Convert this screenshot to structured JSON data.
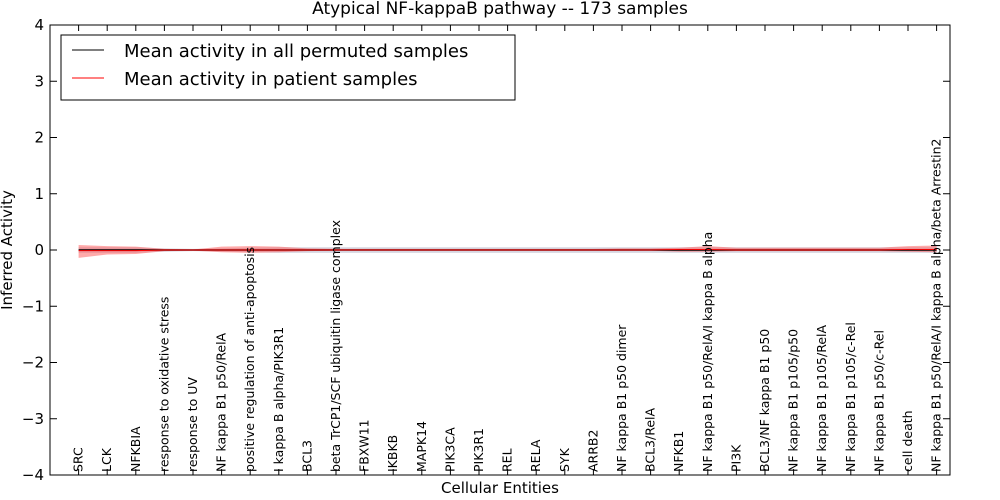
{
  "chart_data": {
    "type": "line",
    "title": "Atypical NF-kappaB pathway -- 173 samples",
    "xlabel": "Cellular Entities",
    "ylabel": "Inferred Activity",
    "ylim": [
      -4,
      4
    ],
    "yticks": [
      "−4",
      "−3",
      "−2",
      "−1",
      "0",
      "1",
      "2",
      "3",
      "4"
    ],
    "ytick_values": [
      -4,
      -3,
      -2,
      -1,
      0,
      1,
      2,
      3,
      4
    ],
    "legend_position": "top-left",
    "grid": false,
    "categories": [
      "SRC",
      "LCK",
      "NFKBIA",
      "response to oxidative stress",
      "response to UV",
      "NF kappa B1 p50/RelA",
      "positive regulation of anti-apoptosis",
      "I kappa B alpha/PIK3R1",
      "BCL3",
      "beta TrCP1/SCF ubiquitin ligase complex",
      "FBXW11",
      "IKBKB",
      "MAPK14",
      "PIK3CA",
      "PIK3R1",
      "REL",
      "RELA",
      "SYK",
      "ARRB2",
      "NF kappa B1 p50 dimer",
      "BCL3/RelA",
      "NFKB1",
      "NF kappa B1 p50/RelA/I kappa B alpha",
      "PI3K",
      "BCL3/NF kappa B1 p50",
      "NF kappa B1 p105/p50",
      "NF kappa B1 p105/RelA",
      "NF kappa B1 p105/c-Rel",
      "NF kappa B1 p50/c-Rel",
      "cell death",
      "NF kappa B1 p50/RelA/I kappa B alpha/beta Arrestin2"
    ],
    "series": [
      {
        "name": "Mean activity in all permuted samples",
        "color": "#000000",
        "band_color": "#8a8aa8",
        "values": [
          0,
          0,
          0,
          0,
          0,
          0,
          0,
          0,
          0,
          0,
          0,
          0,
          0,
          0,
          0,
          0,
          0,
          0,
          0,
          0,
          0,
          0,
          0,
          0,
          0,
          0,
          0,
          0,
          0,
          0,
          0
        ],
        "band_lower": [
          -0.05,
          -0.05,
          -0.05,
          -0.03,
          -0.02,
          -0.03,
          -0.04,
          -0.05,
          -0.05,
          -0.05,
          -0.05,
          -0.05,
          -0.05,
          -0.05,
          -0.05,
          -0.05,
          -0.05,
          -0.05,
          -0.05,
          -0.05,
          -0.05,
          -0.05,
          -0.05,
          -0.05,
          -0.05,
          -0.05,
          -0.05,
          -0.05,
          -0.05,
          -0.05,
          -0.05
        ],
        "band_upper": [
          0.05,
          0.05,
          0.05,
          0.03,
          0.02,
          0.03,
          0.04,
          0.05,
          0.05,
          0.05,
          0.05,
          0.05,
          0.05,
          0.05,
          0.05,
          0.05,
          0.05,
          0.05,
          0.05,
          0.05,
          0.05,
          0.05,
          0.05,
          0.05,
          0.05,
          0.05,
          0.05,
          0.05,
          0.05,
          0.05,
          0.05
        ]
      },
      {
        "name": "Mean activity in patient samples",
        "color": "#ff0000",
        "band_color": "#ff5555",
        "values": [
          -0.01,
          -0.01,
          -0.01,
          0.0,
          0.0,
          0.0,
          0.0,
          0.0,
          0.0,
          0.0,
          0.0,
          0.0,
          0.0,
          0.0,
          0.0,
          0.0,
          0.0,
          0.0,
          0.0,
          0.0,
          0.0,
          0.01,
          0.01,
          0.0,
          0.0,
          0.0,
          0.0,
          0.0,
          0.0,
          0.01,
          0.01
        ],
        "band_lower": [
          -0.14,
          -0.08,
          -0.07,
          -0.02,
          -0.01,
          -0.04,
          -0.05,
          -0.04,
          -0.02,
          -0.01,
          -0.01,
          -0.01,
          -0.01,
          -0.01,
          -0.01,
          -0.01,
          -0.01,
          -0.01,
          -0.01,
          -0.01,
          -0.01,
          -0.03,
          -0.03,
          -0.02,
          -0.02,
          -0.02,
          -0.02,
          -0.02,
          -0.02,
          -0.03,
          -0.04
        ],
        "band_upper": [
          0.09,
          0.07,
          0.06,
          0.02,
          0.01,
          0.06,
          0.07,
          0.06,
          0.03,
          0.02,
          0.02,
          0.02,
          0.02,
          0.02,
          0.02,
          0.02,
          0.02,
          0.02,
          0.02,
          0.03,
          0.03,
          0.04,
          0.07,
          0.04,
          0.04,
          0.04,
          0.04,
          0.04,
          0.04,
          0.07,
          0.08
        ]
      }
    ]
  }
}
